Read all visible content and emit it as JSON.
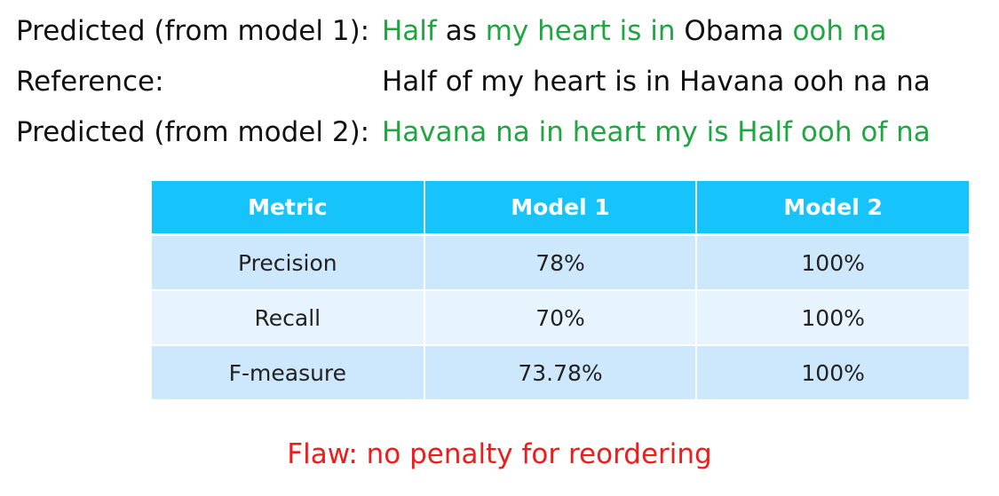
{
  "sentences": [
    {
      "label": "Predicted (from model 1):",
      "segments": [
        {
          "text": "Half",
          "color": "#1fa541"
        },
        {
          "text": "as",
          "color": "#111111"
        },
        {
          "text": "my heart is in",
          "color": "#1fa541"
        },
        {
          "text": "Obama",
          "color": "#111111"
        },
        {
          "text": "ooh na",
          "color": "#1fa541"
        }
      ]
    },
    {
      "label": "Reference:",
      "segments": [
        {
          "text": "Half of my heart is in Havana ooh na na",
          "color": "#111111"
        }
      ]
    },
    {
      "label": "Predicted (from model 2):",
      "segments": [
        {
          "text": "Havana na in heart my is Half ooh of na",
          "color": "#1fa541"
        }
      ]
    }
  ],
  "table": {
    "headers": [
      "Metric",
      "Model 1",
      "Model 2"
    ],
    "rows": [
      [
        "Precision",
        "78%",
        "100%"
      ],
      [
        "Recall",
        "70%",
        "100%"
      ],
      [
        "F-measure",
        "73.78%",
        "100%"
      ]
    ]
  },
  "flaw_note": "Flaw: no penalty for reordering",
  "colors": {
    "match": "#1fa541",
    "header_bg": "#16c3fb",
    "row_odd": "#cde7fc",
    "row_even": "#e7f3fd",
    "flaw": "#ef1c1c"
  }
}
